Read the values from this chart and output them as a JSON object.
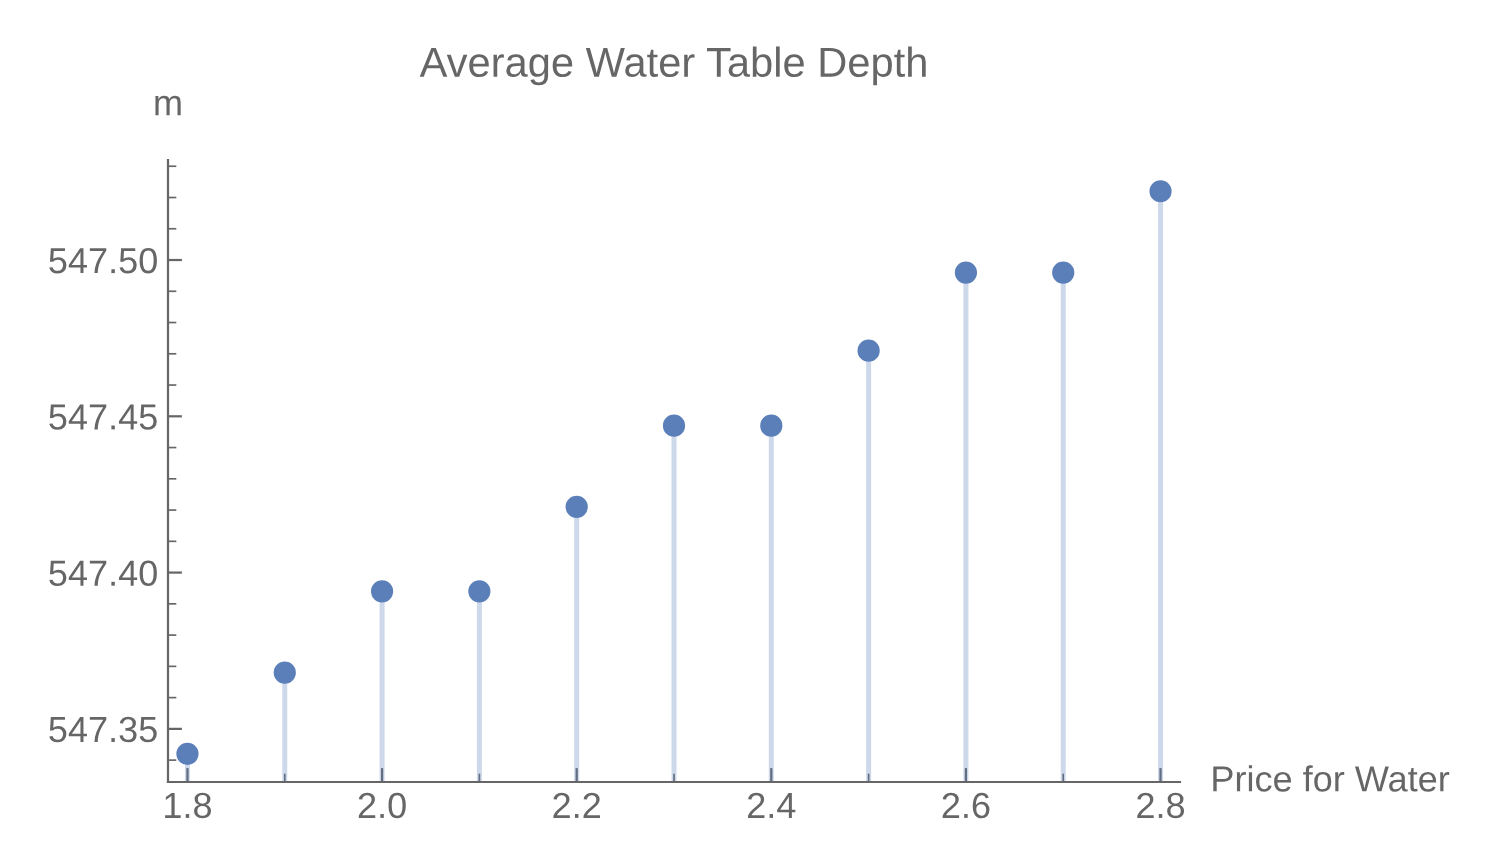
{
  "chart_data": {
    "type": "lollipop",
    "title": "Average Water Table Depth",
    "xlabel": "Price for Water",
    "ylabel": "m",
    "x": [
      1.8,
      1.9,
      2.0,
      2.1,
      2.2,
      2.3,
      2.4,
      2.5,
      2.6,
      2.7,
      2.8
    ],
    "series": [
      {
        "color": "#5b7fb8",
        "values": [
          547.342,
          547.368,
          547.394,
          547.394,
          547.421,
          547.447,
          547.447,
          547.471,
          547.496,
          547.496,
          547.522
        ]
      }
    ],
    "xlim": [
      1.78,
      2.82
    ],
    "ylim": [
      547.333,
      547.532
    ],
    "xticks": [
      {
        "value": 1.8,
        "label": "1.8"
      },
      {
        "value": 2.0,
        "label": "2.0"
      },
      {
        "value": 2.2,
        "label": "2.2"
      },
      {
        "value": 2.4,
        "label": "2.4"
      },
      {
        "value": 2.6,
        "label": "2.6"
      },
      {
        "value": 2.8,
        "label": "2.8"
      }
    ],
    "yticks": [
      {
        "value": 547.35,
        "label": "547.35"
      },
      {
        "value": 547.4,
        "label": "547.40"
      },
      {
        "value": 547.45,
        "label": "547.45"
      },
      {
        "value": 547.5,
        "label": "547.50"
      }
    ],
    "marker": "circle"
  }
}
